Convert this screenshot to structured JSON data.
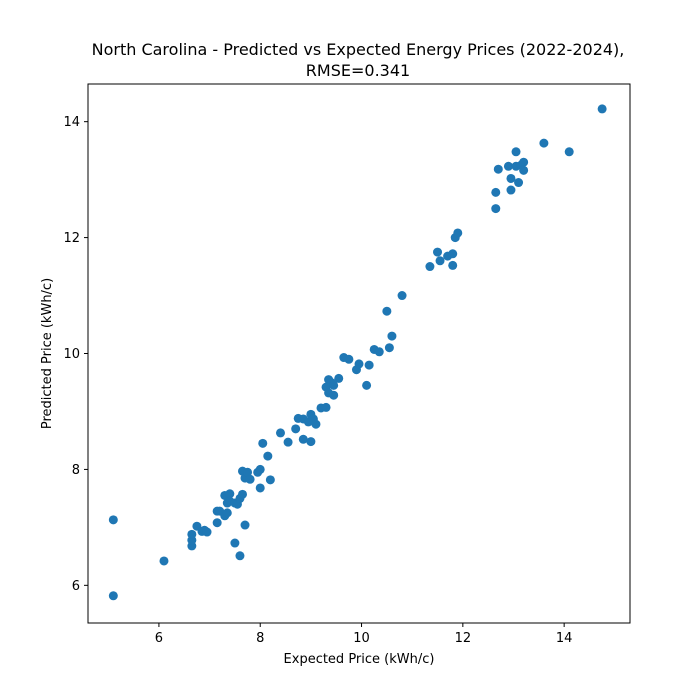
{
  "chart_data": {
    "type": "scatter",
    "title_lines": [
      "North Carolina - Predicted vs Expected Energy Prices (2022-2024),",
      "RMSE=0.341"
    ],
    "xlabel": "Expected Price (kWh/c)",
    "ylabel": "Predicted Price (kWh/c)",
    "xlim": [
      4.6,
      15.3
    ],
    "ylim": [
      5.35,
      14.65
    ],
    "xticks": [
      6,
      8,
      10,
      12,
      14
    ],
    "yticks": [
      6,
      8,
      10,
      12,
      14
    ],
    "grid": false,
    "marker_color": "#1f77b4",
    "points": [
      [
        5.1,
        5.82
      ],
      [
        5.1,
        7.13
      ],
      [
        6.1,
        6.42
      ],
      [
        6.65,
        6.68
      ],
      [
        6.65,
        6.78
      ],
      [
        6.65,
        6.88
      ],
      [
        6.75,
        7.02
      ],
      [
        6.85,
        6.93
      ],
      [
        6.9,
        6.95
      ],
      [
        6.95,
        6.92
      ],
      [
        7.15,
        7.08
      ],
      [
        7.15,
        7.28
      ],
      [
        7.2,
        7.28
      ],
      [
        7.3,
        7.2
      ],
      [
        7.3,
        7.55
      ],
      [
        7.35,
        7.42
      ],
      [
        7.35,
        7.25
      ],
      [
        7.4,
        7.58
      ],
      [
        7.4,
        7.45
      ],
      [
        7.5,
        6.73
      ],
      [
        7.5,
        7.42
      ],
      [
        7.55,
        7.4
      ],
      [
        7.6,
        7.5
      ],
      [
        7.6,
        6.51
      ],
      [
        7.65,
        7.57
      ],
      [
        7.65,
        7.97
      ],
      [
        7.7,
        7.85
      ],
      [
        7.7,
        7.04
      ],
      [
        7.75,
        7.95
      ],
      [
        7.8,
        7.83
      ],
      [
        7.95,
        7.95
      ],
      [
        8.0,
        8.0
      ],
      [
        8.0,
        7.68
      ],
      [
        8.05,
        8.45
      ],
      [
        8.15,
        8.23
      ],
      [
        8.2,
        7.82
      ],
      [
        8.4,
        8.63
      ],
      [
        8.55,
        8.47
      ],
      [
        8.7,
        8.7
      ],
      [
        8.75,
        8.88
      ],
      [
        8.85,
        8.87
      ],
      [
        8.85,
        8.52
      ],
      [
        8.95,
        8.82
      ],
      [
        9.0,
        8.95
      ],
      [
        9.0,
        8.48
      ],
      [
        9.05,
        8.87
      ],
      [
        9.1,
        8.78
      ],
      [
        9.2,
        9.06
      ],
      [
        9.3,
        9.07
      ],
      [
        9.3,
        9.42
      ],
      [
        9.35,
        9.55
      ],
      [
        9.35,
        9.32
      ],
      [
        9.4,
        9.5
      ],
      [
        9.45,
        9.45
      ],
      [
        9.45,
        9.28
      ],
      [
        9.55,
        9.57
      ],
      [
        9.65,
        9.93
      ],
      [
        9.75,
        9.9
      ],
      [
        9.9,
        9.72
      ],
      [
        9.95,
        9.82
      ],
      [
        10.1,
        9.45
      ],
      [
        10.15,
        9.8
      ],
      [
        10.25,
        10.07
      ],
      [
        10.35,
        10.03
      ],
      [
        10.5,
        10.73
      ],
      [
        10.55,
        10.1
      ],
      [
        10.6,
        10.3
      ],
      [
        10.8,
        11.0
      ],
      [
        11.35,
        11.5
      ],
      [
        11.5,
        11.75
      ],
      [
        11.55,
        11.6
      ],
      [
        11.7,
        11.68
      ],
      [
        11.8,
        11.72
      ],
      [
        11.8,
        11.52
      ],
      [
        11.85,
        12.0
      ],
      [
        11.9,
        12.08
      ],
      [
        12.65,
        12.5
      ],
      [
        12.65,
        12.78
      ],
      [
        12.7,
        13.18
      ],
      [
        12.9,
        13.23
      ],
      [
        12.95,
        13.02
      ],
      [
        12.95,
        12.82
      ],
      [
        13.05,
        13.48
      ],
      [
        13.05,
        13.23
      ],
      [
        13.1,
        12.95
      ],
      [
        13.15,
        13.25
      ],
      [
        13.2,
        13.3
      ],
      [
        13.2,
        13.16
      ],
      [
        13.6,
        13.63
      ],
      [
        14.1,
        13.48
      ],
      [
        14.75,
        14.22
      ]
    ]
  }
}
